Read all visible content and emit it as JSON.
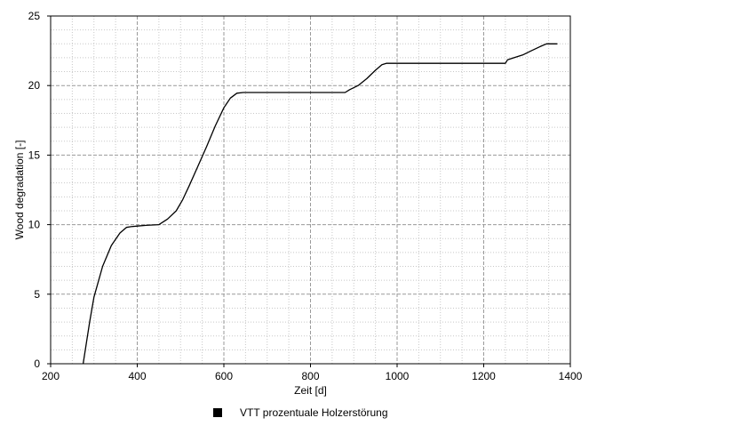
{
  "chart_data": {
    "type": "line",
    "xlabel": "Zeit [d]",
    "ylabel": "Wood degradation [-]",
    "xlim": [
      200,
      1400
    ],
    "ylim": [
      0,
      25
    ],
    "x_ticks": [
      200,
      400,
      600,
      800,
      1000,
      1200,
      1400
    ],
    "y_ticks": [
      0,
      5,
      10,
      15,
      20,
      25
    ],
    "grid": true,
    "legend_position": "bottom",
    "series": [
      {
        "name": "VTT prozentuale Holzerstörung",
        "color": "#000000",
        "x": [
          275,
          290,
          300,
          320,
          340,
          360,
          375,
          385,
          400,
          420,
          450,
          470,
          490,
          505,
          520,
          540,
          560,
          580,
          600,
          615,
          630,
          645,
          700,
          800,
          880,
          890,
          910,
          930,
          950,
          965,
          975,
          1000,
          1100,
          1200,
          1250,
          1255,
          1270,
          1290,
          1310,
          1330,
          1345,
          1370
        ],
        "values": [
          0,
          3.0,
          4.8,
          7.0,
          8.5,
          9.4,
          9.8,
          9.85,
          9.9,
          9.95,
          10.0,
          10.4,
          11.0,
          11.8,
          12.8,
          14.2,
          15.6,
          17.1,
          18.4,
          19.1,
          19.45,
          19.5,
          19.5,
          19.5,
          19.5,
          19.7,
          20.0,
          20.5,
          21.1,
          21.5,
          21.6,
          21.6,
          21.6,
          21.6,
          21.6,
          21.85,
          22.0,
          22.2,
          22.5,
          22.8,
          23.0,
          23.0
        ]
      }
    ]
  }
}
